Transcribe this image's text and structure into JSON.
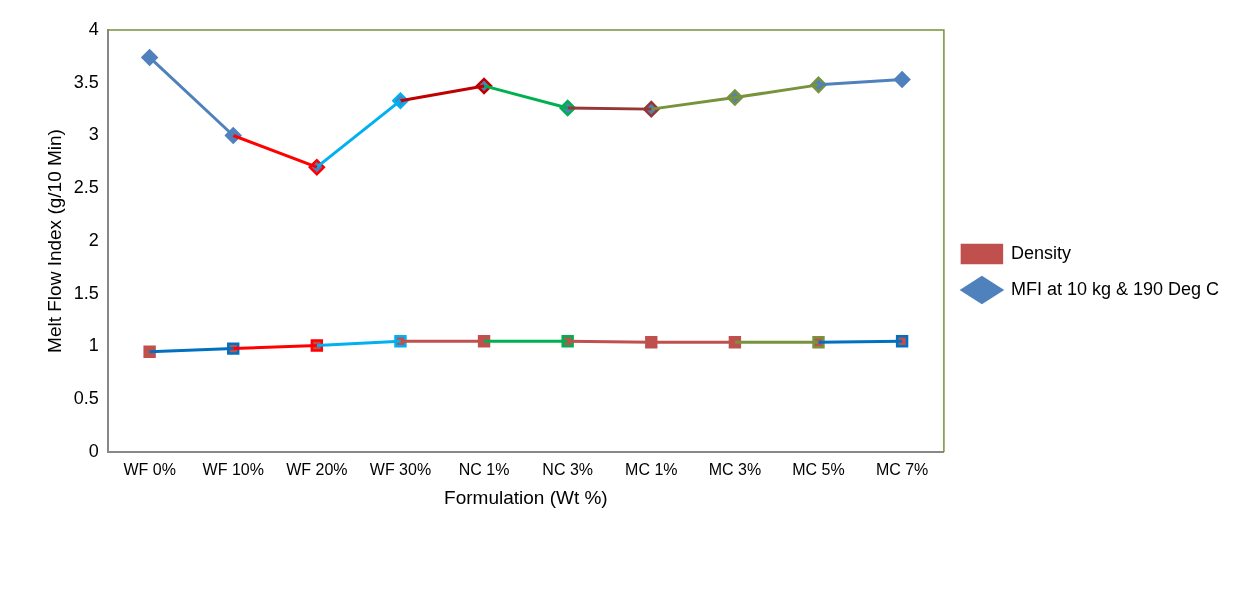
{
  "chart_data": {
    "type": "line",
    "xlabel": "Formulation (Wt %)",
    "ylabel": "Melt Flow Index (g/10 Min)",
    "categories": [
      "WF 0%",
      "WF 10%",
      "WF 20%",
      "WF 30%",
      "NC 1%",
      "NC 3%",
      "MC 1%",
      "MC 3%",
      "MC 5%",
      "MC 7%"
    ],
    "ylim": [
      0,
      4
    ],
    "yticks": [
      0,
      0.5,
      1,
      1.5,
      2,
      2.5,
      3,
      3.5,
      4
    ],
    "grid": false,
    "legend": "right",
    "marker": "none",
    "series": [
      {
        "color": "#0070c0",
        "values": [
          0.95,
          0.98,
          null,
          null,
          null,
          null,
          null,
          null,
          1.04,
          1.05
        ]
      },
      {
        "color": "#ff0000",
        "values": [
          null,
          0.98,
          1.01,
          null,
          null,
          null,
          null,
          null,
          null,
          null
        ]
      },
      {
        "color": "#00b0f0",
        "values": [
          null,
          null,
          1.01,
          1.05,
          null,
          null,
          null,
          null,
          null,
          null
        ]
      },
      {
        "color": "#c0504d",
        "values": [
          null,
          null,
          null,
          1.05,
          1.05,
          null,
          null,
          null,
          null,
          null
        ]
      },
      {
        "color": "#00b050",
        "values": [
          null,
          null,
          null,
          null,
          1.05,
          1.05,
          null,
          null,
          null,
          null
        ]
      },
      {
        "color": "#c0504d",
        "values": [
          null,
          null,
          null,
          null,
          null,
          1.05,
          1.04,
          1.04,
          null,
          null
        ]
      },
      {
        "color": "#77933c",
        "values": [
          null,
          null,
          null,
          null,
          null,
          null,
          null,
          1.04,
          1.04,
          null
        ]
      },
      {
        "color": "#4f81bd",
        "values": [
          3.74,
          3.0,
          null,
          null,
          null,
          null,
          null,
          null,
          3.48,
          3.53
        ]
      },
      {
        "color": "#ff0000",
        "values": [
          null,
          3.0,
          2.7,
          null,
          null,
          null,
          null,
          null,
          null,
          null
        ]
      },
      {
        "color": "#00b0f0",
        "values": [
          null,
          null,
          2.7,
          3.33,
          null,
          null,
          null,
          null,
          null,
          null
        ]
      },
      {
        "color": "#c00000",
        "values": [
          null,
          null,
          null,
          3.33,
          3.47,
          null,
          null,
          null,
          null,
          null
        ]
      },
      {
        "color": "#00b050",
        "values": [
          null,
          null,
          null,
          null,
          3.47,
          3.26,
          null,
          null,
          null,
          null
        ]
      },
      {
        "color": "#953735",
        "values": [
          null,
          null,
          null,
          null,
          null,
          3.26,
          3.25,
          null,
          null,
          null
        ]
      },
      {
        "color": "#77933c",
        "values": [
          null,
          null,
          null,
          null,
          null,
          null,
          3.25,
          3.36,
          3.48,
          null
        ]
      },
      {
        "type": "scatter",
        "name": "Density",
        "color": "#c0504d",
        "marker": "square",
        "values": [
          0.95,
          0.98,
          1.01,
          1.05,
          1.05,
          1.05,
          1.04,
          1.04,
          1.04,
          1.05
        ],
        "colors": [
          "#c0504d",
          "#0070c0",
          "#ff0000",
          "#00b0f0",
          "#c0504d",
          "#00b050",
          "#c0504d",
          "#c0504d",
          "#77933c",
          "#0070c0"
        ]
      },
      {
        "type": "scatter",
        "name": "MFI at 10 kg & 190 Deg C",
        "color": "#4f81bd",
        "marker": "diamond",
        "values": [
          3.74,
          3.0,
          2.7,
          3.33,
          3.47,
          3.26,
          3.25,
          3.36,
          3.48,
          3.53
        ],
        "colors": [
          "#4f81bd",
          "#4f81bd",
          "#ff0000",
          "#00b0f0",
          "#c00000",
          "#00b050",
          "#953735",
          "#77933c",
          "#77933c",
          "#4f81bd"
        ]
      }
    ]
  }
}
